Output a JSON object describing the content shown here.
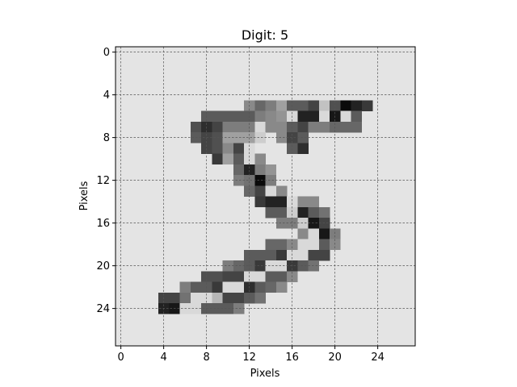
{
  "chart_data": {
    "type": "heatmap",
    "title": "Digit: 5",
    "xlabel": "Pixels",
    "ylabel": "Pixels",
    "xlim": [
      -0.5,
      27.5
    ],
    "ylim": [
      27.5,
      -0.5
    ],
    "xticks": [
      0,
      4,
      8,
      12,
      16,
      20,
      24
    ],
    "yticks": [
      0,
      4,
      8,
      12,
      16,
      20,
      24
    ],
    "grid": true,
    "colormap": "inverted-gray",
    "background_value": 0,
    "cells": [
      [
        5,
        12,
        0.4
      ],
      [
        5,
        13,
        0.55
      ],
      [
        5,
        14,
        0.45
      ],
      [
        5,
        15,
        0.3
      ],
      [
        5,
        16,
        0.6
      ],
      [
        5,
        17,
        0.6
      ],
      [
        5,
        18,
        0.7
      ],
      [
        5,
        19,
        0.15
      ],
      [
        5,
        20,
        0.65
      ],
      [
        5,
        21,
        0.95
      ],
      [
        5,
        22,
        0.85
      ],
      [
        5,
        23,
        0.75
      ],
      [
        6,
        8,
        0.6
      ],
      [
        6,
        9,
        0.6
      ],
      [
        6,
        10,
        0.6
      ],
      [
        6,
        11,
        0.6
      ],
      [
        6,
        12,
        0.6
      ],
      [
        6,
        13,
        0.45
      ],
      [
        6,
        14,
        0.4
      ],
      [
        6,
        15,
        0.35
      ],
      [
        6,
        16,
        0.05
      ],
      [
        6,
        17,
        0.85
      ],
      [
        6,
        18,
        0.85
      ],
      [
        6,
        19,
        0.05
      ],
      [
        6,
        20,
        0.9
      ],
      [
        6,
        21,
        0.05
      ],
      [
        6,
        22,
        0.6
      ],
      [
        7,
        7,
        0.65
      ],
      [
        7,
        8,
        0.8
      ],
      [
        7,
        9,
        0.7
      ],
      [
        7,
        10,
        0.45
      ],
      [
        7,
        11,
        0.45
      ],
      [
        7,
        12,
        0.45
      ],
      [
        7,
        13,
        0.05
      ],
      [
        7,
        14,
        0.4
      ],
      [
        7,
        15,
        0.4
      ],
      [
        7,
        16,
        0.6
      ],
      [
        7,
        17,
        0.7
      ],
      [
        7,
        18,
        0.45
      ],
      [
        7,
        19,
        0.45
      ],
      [
        7,
        20,
        0.55
      ],
      [
        7,
        21,
        0.55
      ],
      [
        7,
        22,
        0.55
      ],
      [
        8,
        7,
        0.6
      ],
      [
        8,
        8,
        0.7
      ],
      [
        8,
        9,
        0.65
      ],
      [
        8,
        10,
        0.3
      ],
      [
        8,
        11,
        0.3
      ],
      [
        8,
        12,
        0.3
      ],
      [
        8,
        13,
        0.1
      ],
      [
        8,
        15,
        0.4
      ],
      [
        8,
        16,
        0.7
      ],
      [
        8,
        17,
        0.6
      ],
      [
        9,
        8,
        0.7
      ],
      [
        9,
        9,
        0.65
      ],
      [
        9,
        10,
        0.4
      ],
      [
        9,
        11,
        0.7
      ],
      [
        9,
        12,
        0.05
      ],
      [
        9,
        16,
        0.6
      ],
      [
        9,
        17,
        0.8
      ],
      [
        10,
        9,
        0.75
      ],
      [
        10,
        10,
        0.3
      ],
      [
        10,
        11,
        0.6
      ],
      [
        10,
        12,
        0.05
      ],
      [
        10,
        13,
        0.4
      ],
      [
        11,
        11,
        0.55
      ],
      [
        11,
        12,
        0.85
      ],
      [
        11,
        13,
        0.45
      ],
      [
        11,
        14,
        0.35
      ],
      [
        12,
        11,
        0.45
      ],
      [
        12,
        12,
        0.5
      ],
      [
        12,
        13,
        0.95
      ],
      [
        12,
        14,
        0.45
      ],
      [
        13,
        12,
        0.55
      ],
      [
        13,
        13,
        0.7
      ],
      [
        13,
        14,
        0.05
      ],
      [
        13,
        15,
        0.4
      ],
      [
        14,
        13,
        0.75
      ],
      [
        14,
        14,
        0.85
      ],
      [
        14,
        15,
        0.85
      ],
      [
        14,
        16,
        0.05
      ],
      [
        14,
        17,
        0.4
      ],
      [
        14,
        18,
        0.4
      ],
      [
        15,
        14,
        0.6
      ],
      [
        15,
        15,
        0.6
      ],
      [
        15,
        16,
        0.1
      ],
      [
        15,
        17,
        0.85
      ],
      [
        15,
        18,
        0.6
      ],
      [
        15,
        19,
        0.5
      ],
      [
        16,
        15,
        0.45
      ],
      [
        16,
        16,
        0.45
      ],
      [
        16,
        17,
        0.1
      ],
      [
        16,
        18,
        0.9
      ],
      [
        16,
        19,
        0.7
      ],
      [
        17,
        17,
        0.4
      ],
      [
        17,
        18,
        0.05
      ],
      [
        17,
        19,
        0.9
      ],
      [
        17,
        20,
        0.45
      ],
      [
        18,
        14,
        0.55
      ],
      [
        18,
        15,
        0.55
      ],
      [
        18,
        16,
        0.4
      ],
      [
        18,
        17,
        0.05
      ],
      [
        18,
        18,
        0.05
      ],
      [
        18,
        19,
        0.6
      ],
      [
        18,
        20,
        0.4
      ],
      [
        19,
        12,
        0.6
      ],
      [
        19,
        13,
        0.6
      ],
      [
        19,
        14,
        0.6
      ],
      [
        19,
        15,
        0.75
      ],
      [
        19,
        16,
        0.05
      ],
      [
        19,
        17,
        0.05
      ],
      [
        19,
        18,
        0.7
      ],
      [
        19,
        19,
        0.7
      ],
      [
        20,
        10,
        0.45
      ],
      [
        20,
        11,
        0.55
      ],
      [
        20,
        12,
        0.6
      ],
      [
        20,
        13,
        0.75
      ],
      [
        20,
        14,
        0.05
      ],
      [
        20,
        15,
        0.05
      ],
      [
        20,
        16,
        0.75
      ],
      [
        20,
        17,
        0.6
      ],
      [
        20,
        18,
        0.5
      ],
      [
        21,
        8,
        0.65
      ],
      [
        21,
        9,
        0.65
      ],
      [
        21,
        10,
        0.7
      ],
      [
        21,
        11,
        0.7
      ],
      [
        21,
        12,
        0.05
      ],
      [
        21,
        13,
        0.05
      ],
      [
        21,
        14,
        0.6
      ],
      [
        21,
        15,
        0.6
      ],
      [
        21,
        16,
        0.4
      ],
      [
        22,
        6,
        0.45
      ],
      [
        22,
        7,
        0.6
      ],
      [
        22,
        8,
        0.6
      ],
      [
        22,
        9,
        0.75
      ],
      [
        22,
        10,
        0.05
      ],
      [
        22,
        11,
        0.05
      ],
      [
        22,
        12,
        0.8
      ],
      [
        22,
        13,
        0.6
      ],
      [
        22,
        14,
        0.55
      ],
      [
        22,
        15,
        0.4
      ],
      [
        23,
        4,
        0.7
      ],
      [
        23,
        5,
        0.7
      ],
      [
        23,
        6,
        0.5
      ],
      [
        23,
        7,
        0.05
      ],
      [
        23,
        8,
        0.05
      ],
      [
        23,
        9,
        0.2
      ],
      [
        23,
        10,
        0.7
      ],
      [
        23,
        11,
        0.7
      ],
      [
        23,
        12,
        0.6
      ],
      [
        23,
        13,
        0.5
      ],
      [
        24,
        4,
        0.85
      ],
      [
        24,
        5,
        0.9
      ],
      [
        24,
        6,
        0.05
      ],
      [
        24,
        7,
        0.05
      ],
      [
        24,
        8,
        0.6
      ],
      [
        24,
        9,
        0.6
      ],
      [
        24,
        10,
        0.6
      ],
      [
        24,
        11,
        0.45
      ]
    ]
  }
}
